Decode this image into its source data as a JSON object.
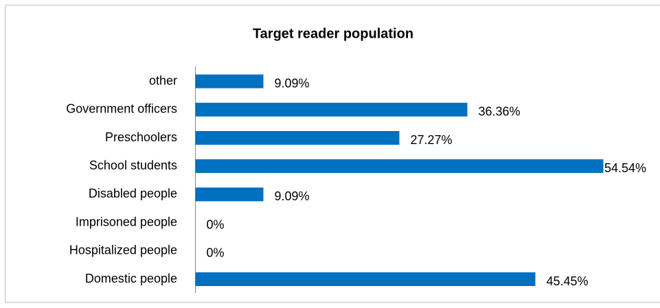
{
  "chart_data": {
    "type": "bar",
    "orientation": "horizontal",
    "title": "Target reader population",
    "categories": [
      "other",
      "Government officers",
      "Preschoolers",
      "School students",
      "Disabled people",
      "Imprisoned people",
      "Hospitalized people",
      "Domestic people"
    ],
    "values": [
      9.09,
      36.36,
      27.27,
      54.54,
      9.09,
      0,
      0,
      45.45
    ],
    "value_labels": [
      "9.09%",
      "36.36%",
      "27.27%",
      "54.54%",
      "9.09%",
      "0%",
      "0%",
      "45.45%"
    ],
    "color": "#0070c0"
  }
}
